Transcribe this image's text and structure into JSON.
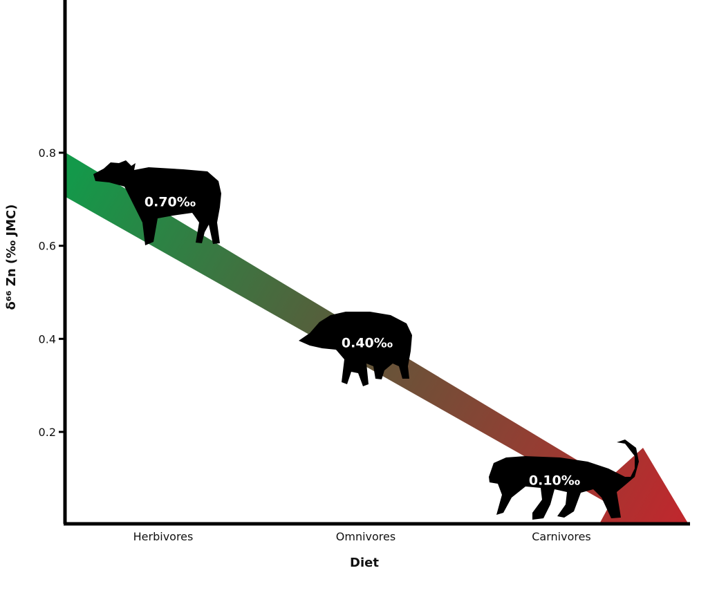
{
  "chart_data": {
    "type": "line",
    "title": "",
    "xlabel": "Diet",
    "ylabel": "δ⁶⁶ Zn (‰ JMC)",
    "ylim": [
      0,
      1.05
    ],
    "yticks": [
      0.2,
      0.4,
      0.6,
      0.8
    ],
    "ytick_labels": [
      "0.2",
      "0.4",
      "0.6",
      "0.8"
    ],
    "categories": [
      "Herbivores",
      "Omnivores",
      "Carnivores"
    ],
    "series": [
      {
        "values": [
          0.7,
          0.4,
          0.1
        ]
      }
    ],
    "data_labels": [
      "0.70‰",
      "0.40‰",
      "0.10‰"
    ],
    "icons": [
      "buffalo-silhouette-icon",
      "boar-silhouette-icon",
      "leopard-silhouette-icon"
    ],
    "gradient_colors": {
      "start": "#13994a",
      "mid": "#5b5a3a",
      "end": "#c1272d"
    },
    "grid": false,
    "legend": "none"
  }
}
